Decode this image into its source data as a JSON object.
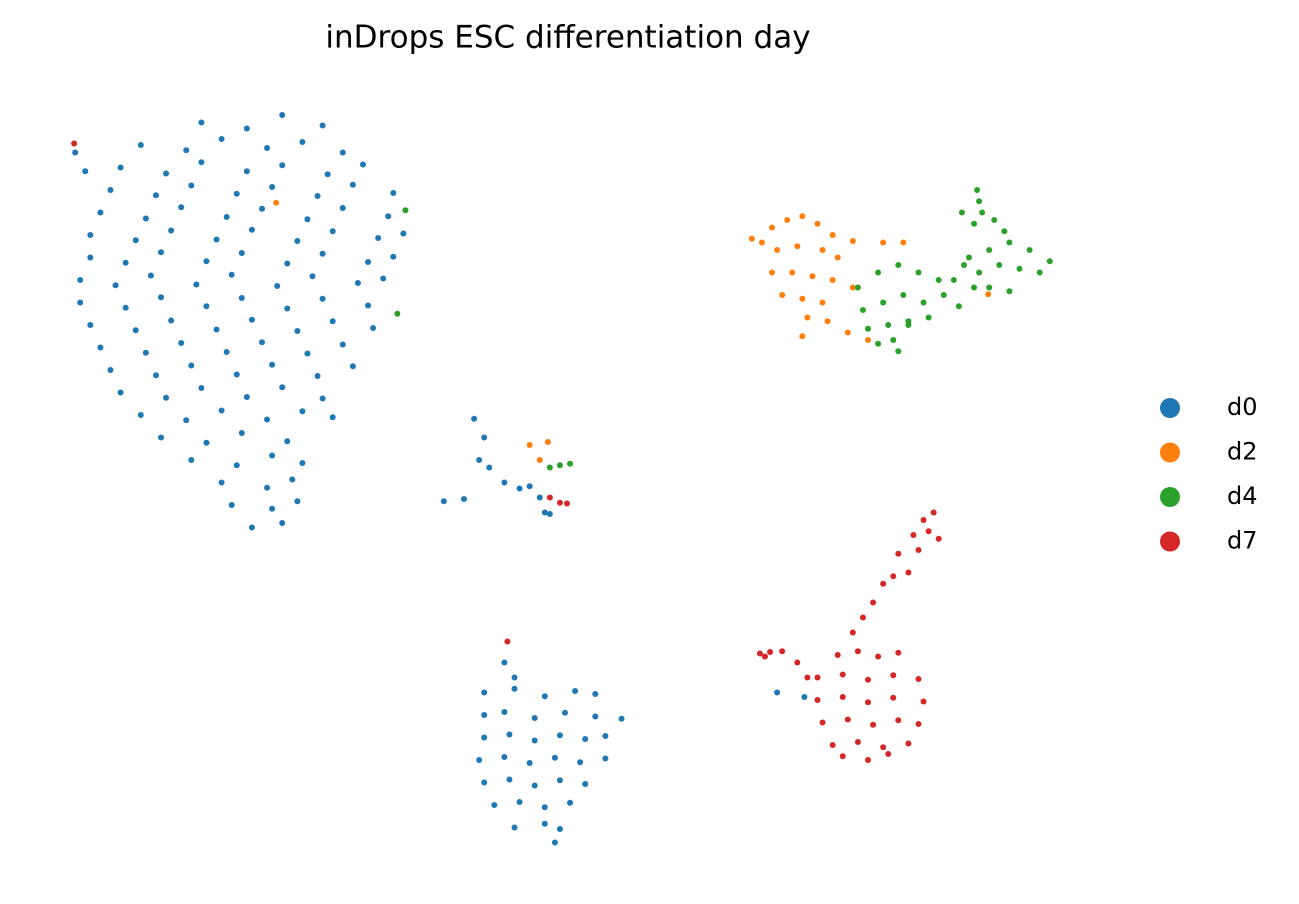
{
  "chart_data": {
    "type": "scatter",
    "title": "inDrops ESC differentiation day",
    "xlim": [
      0,
      100
    ],
    "ylim": [
      0,
      100
    ],
    "grid": false,
    "series": [
      {
        "name": "d0",
        "color": "#1f77b4",
        "x": [
          14,
          18.5,
          22,
          26,
          8,
          12.5,
          16,
          20.5,
          24,
          28,
          6,
          10.5,
          14,
          18.5,
          22,
          26.5,
          30,
          5,
          9.5,
          13,
          17.5,
          21,
          25.5,
          29,
          33,
          4,
          8.5,
          12,
          16.5,
          20,
          24.5,
          28,
          32.5,
          3,
          7.5,
          11,
          15.5,
          19,
          23.5,
          27,
          31.5,
          34,
          3,
          6.5,
          10,
          14.5,
          18,
          22.5,
          26,
          30.5,
          33,
          2,
          5.5,
          9,
          13.5,
          17,
          21.5,
          25,
          29.5,
          32,
          2,
          6.5,
          10,
          14.5,
          18,
          22.5,
          26,
          30.5,
          3,
          7.5,
          11,
          15.5,
          19,
          23.5,
          27,
          31,
          4,
          8.5,
          12,
          16.5,
          20,
          24.5,
          28,
          5,
          9.5,
          13,
          17.5,
          21,
          25.5,
          29,
          6,
          10.5,
          14,
          18.5,
          22,
          26,
          8,
          12.5,
          16,
          20.5,
          24,
          27,
          10,
          14.5,
          18,
          22.5,
          13,
          17.5,
          21,
          24,
          16,
          20.5,
          23,
          17,
          21,
          23.5,
          19,
          22,
          1.5,
          2.5,
          38,
          40,
          41.5,
          42.5,
          44,
          45.5,
          46.5,
          47.5,
          48,
          48.5,
          41,
          42,
          44,
          45,
          42,
          45,
          48,
          51,
          53,
          42,
          44,
          47,
          50,
          53,
          42,
          44.5,
          47,
          49.5,
          52,
          54,
          41.5,
          44,
          46.5,
          49,
          51.5,
          54,
          42,
          44.5,
          47,
          49.5,
          52,
          43,
          45.5,
          48,
          50.5,
          45,
          48,
          49.5,
          49,
          55.6,
          71,
          73.7
        ],
        "values": [
          97,
          96.2,
          98,
          96.6,
          94,
          93.3,
          94.8,
          93.6,
          94.4,
          93,
          91,
          90.2,
          91.7,
          90.5,
          91.3,
          90.1,
          91.4,
          88,
          87.3,
          88.6,
          87.5,
          88.4,
          87.2,
          88.7,
          87.6,
          85,
          84.2,
          85.7,
          84.4,
          85.5,
          84.1,
          85.6,
          84.5,
          82,
          81.3,
          82.6,
          81.4,
          82.7,
          81.2,
          82.5,
          81.6,
          82.2,
          79,
          78.3,
          79.7,
          78.5,
          79.6,
          78.2,
          79.5,
          78.4,
          79.1,
          76,
          75.3,
          76.6,
          75.4,
          76.7,
          75.2,
          76.5,
          75.6,
          76.2,
          73,
          72.3,
          73.7,
          72.5,
          73.6,
          72.2,
          73.5,
          72.6,
          70,
          69.3,
          70.6,
          69.4,
          70.7,
          69.2,
          70.5,
          69.6,
          67,
          66.3,
          67.6,
          66.4,
          67.7,
          66.2,
          67.4,
          64,
          63.3,
          64.6,
          63.4,
          64.7,
          63.2,
          64.5,
          61,
          60.3,
          61.6,
          60.4,
          61.7,
          60.2,
          58,
          57.3,
          58.6,
          57.4,
          58.5,
          57.7,
          55,
          54.3,
          55.6,
          54.5,
          52,
          51.3,
          52.6,
          51.6,
          49,
          48.3,
          49.4,
          46,
          45.5,
          46.5,
          43,
          43.6,
          93,
          90.5,
          46.5,
          46.8,
          52,
          51,
          49,
          48.2,
          48.5,
          47,
          45,
          44.8,
          57.5,
          55,
          25,
          23,
          21,
          21.5,
          20.5,
          21.2,
          20.8,
          18,
          18.4,
          17.6,
          18.3,
          17.8,
          15,
          15.4,
          14.6,
          15.3,
          14.8,
          15.2,
          12,
          12.4,
          11.6,
          12.3,
          11.7,
          12.2,
          9,
          9.4,
          8.6,
          9.3,
          8.8,
          6,
          6.4,
          5.7,
          6.3,
          3,
          3.5,
          2.8,
          1,
          17.5,
          21,
          20.4
        ]
      },
      {
        "name": "d2",
        "color": "#ff7f0e",
        "x": [
          68.5,
          69.5,
          70.5,
          72,
          73.5,
          75,
          71,
          73,
          75.5,
          77,
          70.5,
          72.5,
          74.5,
          76.5,
          71.5,
          73.5,
          75.5,
          74,
          76,
          73.5,
          78.5,
          78,
          80,
          76.5,
          81.5,
          78.5,
          83.5,
          46.5,
          48.3,
          47.5,
          21.4,
          91.9
        ],
        "values": [
          81.5,
          81,
          83,
          84,
          84.5,
          83.5,
          80,
          80.5,
          80,
          79,
          77,
          77,
          76.5,
          76,
          74,
          73.5,
          73,
          71,
          70.5,
          68.5,
          75,
          69,
          68,
          82,
          81,
          81.2,
          81,
          54,
          54.4,
          52,
          86.3,
          74.1
        ]
      },
      {
        "name": "d4",
        "color": "#2ca02c",
        "x": [
          79,
          81,
          83,
          85,
          87,
          79.5,
          81.5,
          83.5,
          85.5,
          87.5,
          80,
          82,
          84,
          86,
          81,
          83,
          82.5,
          88.5,
          89.5,
          90,
          92,
          94,
          96,
          98,
          91,
          93,
          95,
          97,
          92,
          94,
          90.5,
          93.5,
          89,
          90.8,
          91,
          91.3,
          90.5,
          92.5,
          84,
          89.3,
          48.5,
          49.5,
          50.5,
          34.2,
          33.4
        ],
        "values": [
          75,
          77,
          78,
          77,
          76,
          72,
          73,
          74,
          73,
          74,
          69.5,
          70,
          70.5,
          71,
          67.5,
          66.5,
          68,
          76,
          78,
          79,
          80,
          81,
          80,
          78.5,
          77,
          78,
          77.5,
          77,
          75,
          74.5,
          75,
          82.5,
          72.5,
          88,
          86.5,
          85,
          83.5,
          84,
          70,
          85,
          51,
          51.3,
          51.5,
          85.3,
          71.5
        ]
      },
      {
        "name": "d7",
        "color": "#d62728",
        "x": [
          77,
          79,
          81,
          83,
          75,
          77.5,
          80,
          82.5,
          85,
          75,
          77.5,
          80,
          82.5,
          85.5,
          75.5,
          78,
          80.5,
          83,
          85,
          76.5,
          79,
          81.5,
          84,
          77.5,
          80,
          82,
          78.5,
          79.5,
          80.5,
          81.5,
          82.5,
          84,
          83,
          85,
          84.5,
          86,
          85.5,
          87,
          86.5,
          69.3,
          69.8,
          70.3,
          71.5,
          73,
          74,
          48.5,
          49.5,
          50.2,
          1.4,
          44.3
        ],
        "values": [
          26,
          26.5,
          25.8,
          26.3,
          23,
          23.4,
          22.7,
          23.3,
          22.8,
          20,
          20.4,
          19.7,
          20.3,
          19.8,
          17,
          17.4,
          16.7,
          17.3,
          16.8,
          14,
          14.4,
          13.7,
          14.2,
          12.5,
          12,
          12.8,
          29,
          31,
          33,
          35.5,
          36.5,
          37,
          39.5,
          40,
          42,
          42.5,
          44,
          41.5,
          45,
          26.2,
          25.8,
          26.4,
          26.5,
          25,
          23,
          47,
          46.3,
          46.2,
          94.2,
          27.8
        ]
      }
    ]
  }
}
